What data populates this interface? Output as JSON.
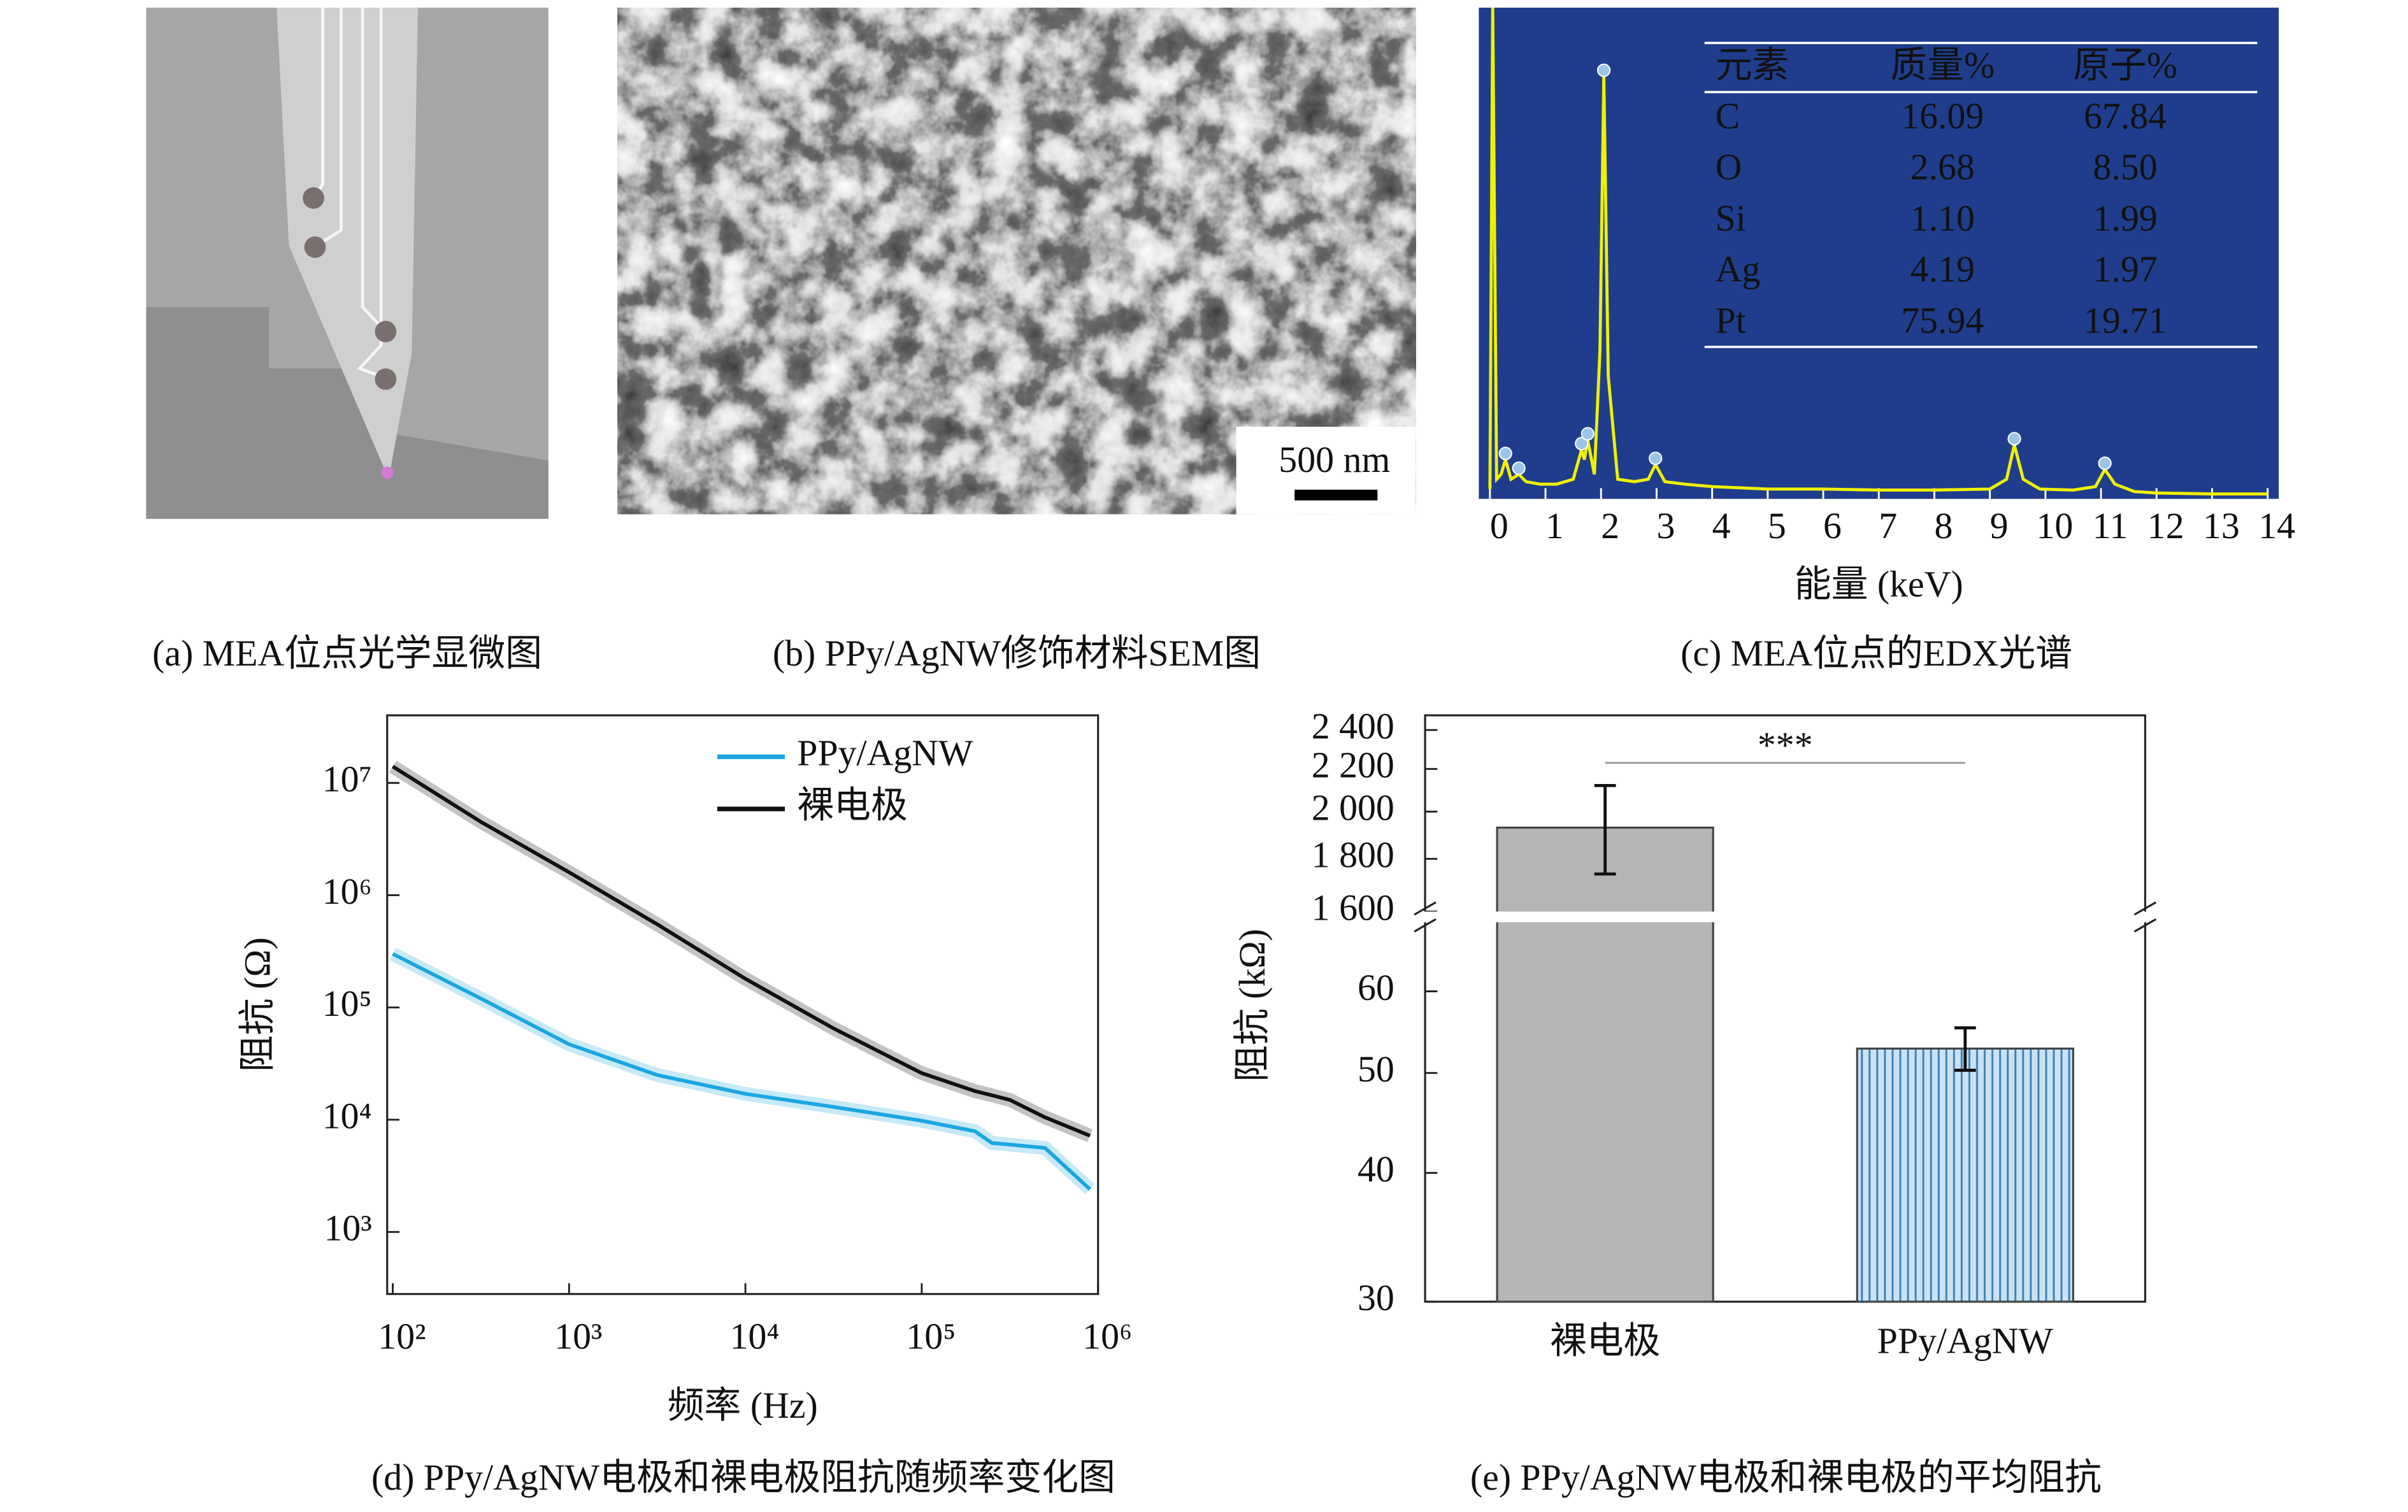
{
  "captions": [
    "(a) MEA位点光学显微图",
    "(b) PPy/AgNW修饰材料SEM图",
    "(c) MEA位点的EDX光谱",
    "(d) PPy/AgNW电极和裸电极阻抗随频率变化图",
    "(e) PPy/AgNW电极和裸电极的平均阻抗"
  ],
  "scale_bar": "500 nm",
  "chart_data": [
    {
      "type": "line",
      "x_label": "能量 (keV)",
      "x": [
        0,
        0.05,
        0.12,
        0.2,
        0.28,
        0.38,
        0.52,
        0.65,
        0.9,
        1.2,
        1.5,
        1.65,
        1.7,
        1.76,
        1.88,
        1.98,
        2.05,
        2.13,
        2.3,
        2.6,
        2.85,
        2.98,
        3.15,
        3.5,
        4,
        5,
        6,
        7,
        8,
        9,
        9.3,
        9.44,
        9.6,
        9.9,
        10.5,
        10.9,
        11.07,
        11.25,
        11.6,
        12,
        13,
        14
      ],
      "values": [
        2,
        100,
        4,
        5,
        8,
        4,
        5,
        3.5,
        3,
        3,
        4,
        10,
        8,
        12,
        5,
        30,
        86,
        25,
        4,
        3.5,
        4,
        7,
        3.5,
        3,
        2.5,
        2,
        2,
        1.8,
        1.8,
        2,
        4,
        11,
        4,
        2,
        1.8,
        2.5,
        6,
        3,
        1.5,
        1.2,
        1,
        1
      ],
      "color": "#f0f000",
      "background": "#1f3d8c",
      "marker_color": "#9cc4e8",
      "xlim": [
        -0.2,
        14.2
      ],
      "xticks": [
        0,
        1,
        2,
        3,
        4,
        5,
        6,
        7,
        8,
        9,
        10,
        11,
        12,
        13,
        14
      ],
      "ylim": [
        0,
        100
      ],
      "table": {
        "header": [
          "元素",
          "质量%",
          "原子%"
        ],
        "rows": [
          [
            "C",
            "16.09",
            "67.84"
          ],
          [
            "O",
            "2.68",
            "8.50"
          ],
          [
            "Si",
            "1.10",
            "1.99"
          ],
          [
            "Ag",
            "4.19",
            "1.97"
          ],
          [
            "Pt",
            "75.94",
            "19.71"
          ]
        ]
      }
    },
    {
      "type": "line",
      "x_label": "频率 (Hz)",
      "y_label": "阻抗 (Ω)",
      "log_x": true,
      "log_y": true,
      "legend": "upper right",
      "x": [
        100,
        316,
        1000,
        3162,
        10000,
        31623,
        100000,
        200000,
        250000,
        316228,
        500000,
        900000
      ],
      "series": [
        {
          "name": "PPy/AgNW",
          "color": "#1ba6e0",
          "values": [
            300000,
            120000,
            47000,
            25000,
            17000,
            13000,
            9800,
            7900,
            6200,
            6000,
            5600,
            2400
          ]
        },
        {
          "name": "裸电极",
          "color": "#111111",
          "values": [
            14000000,
            4500000,
            1600000,
            550000,
            180000,
            65000,
            26000,
            18000,
            16500,
            15000,
            10500,
            7200
          ]
        }
      ],
      "xlim": [
        93,
        1000000
      ],
      "xticks": [
        {
          "value": 100,
          "label": "10²"
        },
        {
          "value": 1000,
          "label": "10³"
        },
        {
          "value": 10000,
          "label": "10⁴"
        },
        {
          "value": 100000,
          "label": "10⁵"
        },
        {
          "value": 1000000,
          "label": "10⁶"
        }
      ],
      "ylim": [
        280,
        40000000
      ],
      "yticks": [
        {
          "value": 1000,
          "label": "10³"
        },
        {
          "value": 10000,
          "label": "10⁴"
        },
        {
          "value": 100000,
          "label": "10⁵"
        },
        {
          "value": 1000000,
          "label": "10⁶"
        },
        {
          "value": 10000000,
          "label": "10⁷"
        }
      ]
    },
    {
      "type": "bar",
      "y_label": "阻抗 (kΩ)",
      "log_y": true,
      "categories": [
        "裸电极",
        "PPy/AgNW"
      ],
      "values": [
        1930,
        52.8
      ],
      "errors": [
        190,
        2.5
      ],
      "colors": [
        "#b5b5b5",
        "#a8cce6"
      ],
      "hatch": [
        "none",
        "vertical"
      ],
      "ylim": [
        30,
        2480
      ],
      "ybreak": [
        70,
        1600
      ],
      "yticks": [
        30,
        40,
        50,
        60,
        {
          "value": 1600,
          "label": "1 600"
        },
        {
          "value": 1800,
          "label": "1 800"
        },
        {
          "value": 2000,
          "label": "2 000"
        },
        {
          "value": 2200,
          "label": "2 200"
        },
        {
          "value": 2400,
          "label": "2 400"
        }
      ],
      "annotation": "***"
    }
  ]
}
